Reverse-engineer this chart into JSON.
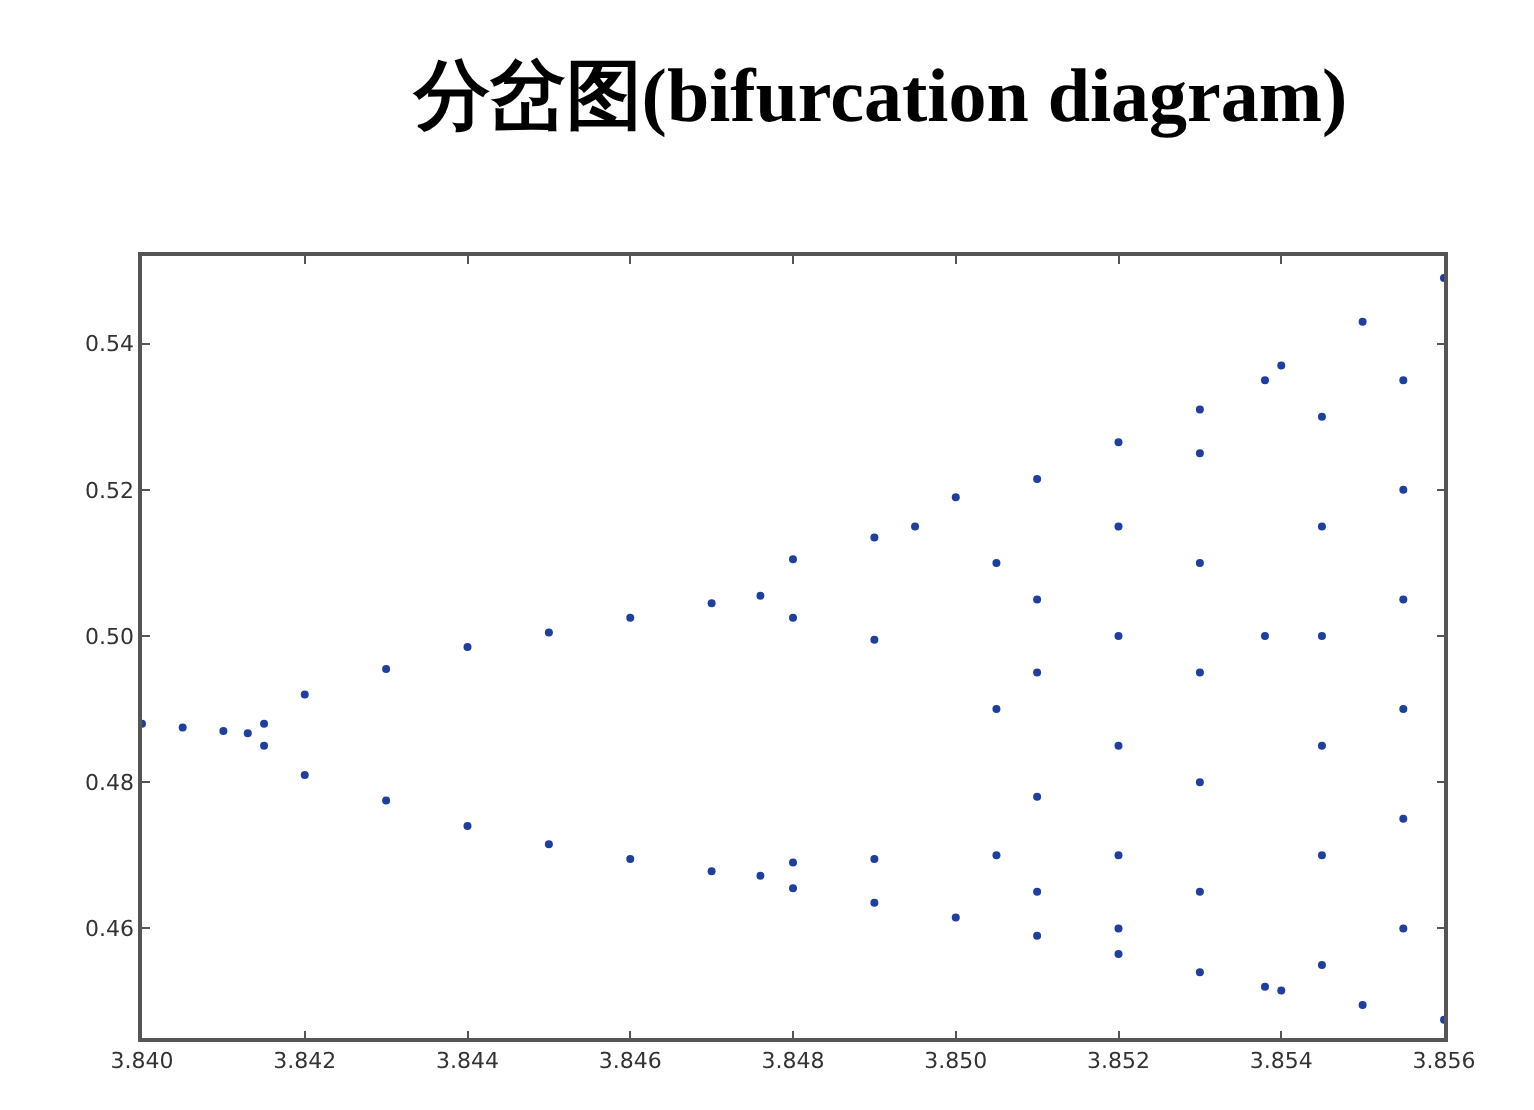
{
  "chart_data": {
    "type": "scatter",
    "title": "分岔图(bifurcation diagram)",
    "xlim": [
      3.84,
      3.856
    ],
    "xticks": [
      {
        "value": 3.84,
        "label": "3.840"
      },
      3.842,
      3.844,
      3.846,
      3.848,
      {
        "value": 3.85,
        "label": "3.850"
      },
      3.852,
      3.854,
      3.856
    ],
    "ylim": [
      0.445,
      0.552
    ],
    "yticks": [
      0.46,
      0.48,
      {
        "value": 0.5,
        "label": "0.50"
      },
      0.52,
      0.54
    ],
    "grid": false,
    "marker": "circle",
    "series": [
      {
        "color": "#1f3f9f",
        "x": [
          3.84,
          3.8405,
          3.841,
          3.8413,
          3.8415,
          3.842,
          3.843,
          3.844,
          3.845,
          3.846,
          3.847,
          3.8476,
          3.8415,
          3.842,
          3.843,
          3.844,
          3.845,
          3.846,
          3.847,
          3.8476,
          3.848,
          3.849,
          3.8495,
          3.848,
          3.849,
          3.848,
          3.849,
          3.848,
          3.849,
          3.85,
          3.851,
          3.852,
          3.853,
          3.854,
          3.855,
          3.856,
          3.85,
          3.851,
          3.852,
          3.853,
          3.854,
          3.855,
          3.856,
          3.8505,
          3.8505,
          3.8505,
          3.851,
          3.851,
          3.851,
          3.851,
          3.852,
          3.852,
          3.852,
          3.852,
          3.852,
          3.853,
          3.853,
          3.853,
          3.853,
          3.853,
          3.8538,
          3.8538,
          3.8538,
          3.8545,
          3.8545,
          3.8545,
          3.8545,
          3.8545,
          3.8545,
          3.8555,
          3.8555,
          3.8555,
          3.8555,
          3.8555,
          3.8555
        ],
        "values": [
          0.488,
          0.4875,
          0.487,
          0.4867,
          0.488,
          0.492,
          0.4955,
          0.4985,
          0.5005,
          0.5025,
          0.5045,
          0.5055,
          0.485,
          0.481,
          0.4775,
          0.474,
          0.4715,
          0.4695,
          0.4678,
          0.4672,
          0.5105,
          0.5135,
          0.515,
          0.5025,
          0.4995,
          0.469,
          0.4695,
          0.4655,
          0.4635,
          0.519,
          0.5215,
          0.5265,
          0.531,
          0.537,
          0.543,
          0.549,
          0.4615,
          0.459,
          0.4565,
          0.454,
          0.4515,
          0.4495,
          0.4475,
          0.51,
          0.49,
          0.47,
          0.505,
          0.495,
          0.478,
          0.465,
          0.515,
          0.5,
          0.485,
          0.47,
          0.46,
          0.525,
          0.51,
          0.495,
          0.48,
          0.465,
          0.535,
          0.5,
          0.452,
          0.53,
          0.515,
          0.5,
          0.485,
          0.47,
          0.455,
          0.535,
          0.52,
          0.505,
          0.49,
          0.475,
          0.46
        ]
      }
    ]
  }
}
